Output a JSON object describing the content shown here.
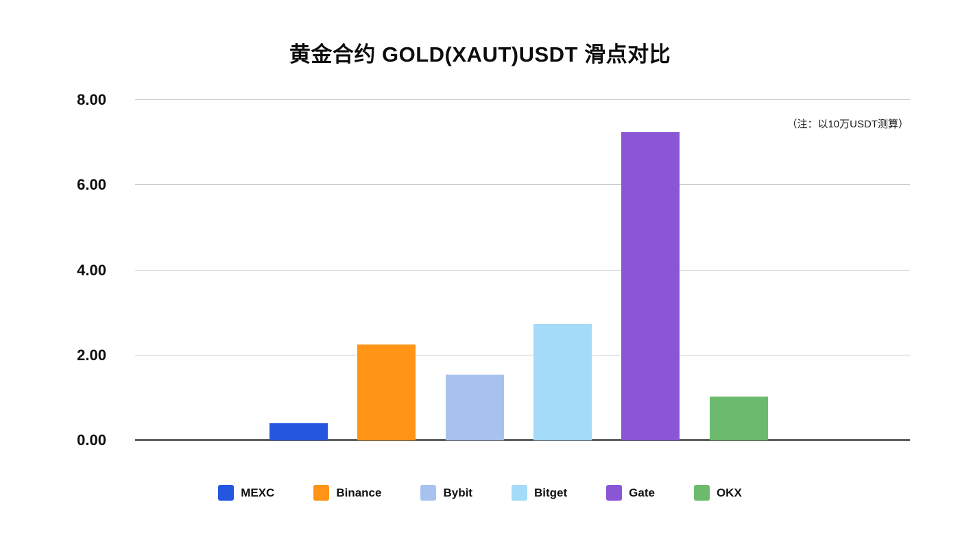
{
  "chart_data": {
    "type": "bar",
    "title": "黄金合约 GOLD(XAUT)USDT 滑点对比",
    "annotation": "（注：以10万USDT测算）",
    "categories": [
      "MEXC",
      "Binance",
      "Bybit",
      "Bitget",
      "Gate",
      "OKX"
    ],
    "values": [
      0.4,
      2.25,
      1.55,
      2.73,
      7.25,
      1.03
    ],
    "colors": [
      "#2456E0",
      "#FF9416",
      "#A8C2F0",
      "#A3DBF8",
      "#8A56D6",
      "#6CBA6E"
    ],
    "xlabel": "",
    "ylabel": "",
    "ylim": [
      0,
      8
    ],
    "yticks": [
      "0.00",
      "2.00",
      "4.00",
      "6.00",
      "8.00"
    ],
    "grid": true,
    "legend_position": "bottom",
    "background": "#ffffff"
  }
}
